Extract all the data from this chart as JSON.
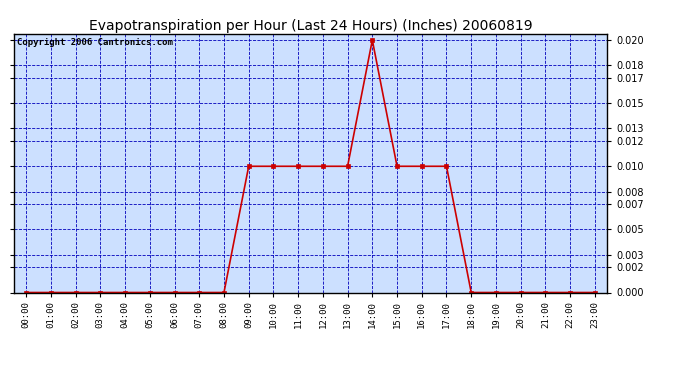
{
  "title": "Evapotranspiration per Hour (Last 24 Hours) (Inches) 20060819",
  "copyright": "Copyright 2006 Cantronics.com",
  "x_labels": [
    "00:00",
    "01:00",
    "02:00",
    "03:00",
    "04:00",
    "05:00",
    "06:00",
    "07:00",
    "08:00",
    "09:00",
    "10:00",
    "11:00",
    "12:00",
    "13:00",
    "14:00",
    "15:00",
    "16:00",
    "17:00",
    "18:00",
    "19:00",
    "20:00",
    "21:00",
    "22:00",
    "23:00"
  ],
  "y_values": [
    0.0,
    0.0,
    0.0,
    0.0,
    0.0,
    0.0,
    0.0,
    0.0,
    0.0,
    0.01,
    0.01,
    0.01,
    0.01,
    0.01,
    0.02,
    0.01,
    0.01,
    0.01,
    0.0,
    0.0,
    0.0,
    0.0,
    0.0,
    0.0
  ],
  "line_color": "#cc0000",
  "marker_color": "#cc0000",
  "bg_color": "#ffffff",
  "plot_bg_color": "#cce0ff",
  "grid_color": "#0000bb",
  "title_fontsize": 10,
  "copyright_fontsize": 6.5,
  "ylim": [
    0.0,
    0.0205
  ],
  "yticks": [
    0.0,
    0.002,
    0.003,
    0.005,
    0.007,
    0.008,
    0.01,
    0.012,
    0.013,
    0.015,
    0.017,
    0.018,
    0.02
  ]
}
